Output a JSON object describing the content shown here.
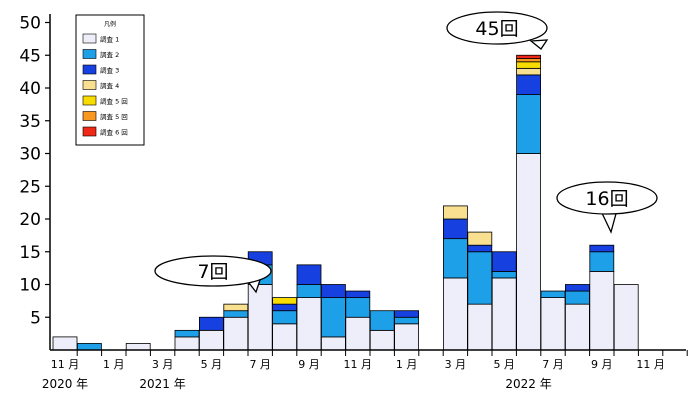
{
  "chart_data": {
    "type": "bar",
    "stacked": true,
    "ylim": [
      0,
      50
    ],
    "yticks": [
      5,
      10,
      15,
      20,
      25,
      30,
      35,
      40,
      45,
      50
    ],
    "month_labels": [
      "11 月",
      "1 月",
      "3 月",
      "5 月",
      "7 月",
      "9 月",
      "11 月",
      "1 月",
      "3 月",
      "5 月",
      "7 月",
      "9 月",
      "11 月"
    ],
    "year_labels": [
      "2020 年",
      "2021 年",
      "2022 年"
    ],
    "categories": [
      "2020-11",
      "2020-12",
      "2021-01",
      "2021-02",
      "2021-03",
      "2021-04",
      "2021-05",
      "2021-06",
      "2021-07",
      "2021-08",
      "2021-09",
      "2021-10",
      "2021-11",
      "2021-12",
      "2022-01",
      "2022-02",
      "2022-03",
      "2022-04",
      "2022-05",
      "2022-06",
      "2022-07",
      "2022-08",
      "2022-09",
      "2022-10",
      "2022-11",
      "2022-12"
    ],
    "legend": {
      "title": "凡例",
      "entries": [
        "調査 1",
        "調査 2",
        "調査 3",
        "調査 4",
        "調査 5 回",
        "調査 5 回",
        "調査 6 回"
      ]
    },
    "colors": [
      "#eeeefa",
      "#1ea0e8",
      "#1640e0",
      "#f8e090",
      "#f8dc00",
      "#f89820",
      "#f02818"
    ],
    "series": [
      {
        "name": "調査 1",
        "values": [
          2,
          0,
          0,
          1,
          0,
          2,
          3,
          5,
          10,
          4,
          8,
          2,
          5,
          3,
          4,
          0,
          11,
          7,
          11,
          30,
          8,
          7,
          12,
          10,
          0,
          0
        ]
      },
      {
        "name": "調査 2",
        "values": [
          0,
          1,
          0,
          0,
          0,
          1,
          0,
          1,
          3,
          2,
          2,
          6,
          3,
          3,
          1,
          0,
          6,
          8,
          1,
          9,
          1,
          2,
          3,
          0,
          0,
          0
        ]
      },
      {
        "name": "調査 3",
        "values": [
          0,
          0,
          0,
          0,
          0,
          0,
          2,
          0,
          2,
          1,
          3,
          2,
          1,
          0,
          1,
          0,
          3,
          1,
          3,
          3,
          0,
          1,
          1,
          0,
          0,
          0
        ]
      },
      {
        "name": "調査 4",
        "values": [
          0,
          0,
          0,
          0,
          0,
          0,
          0,
          1,
          0,
          0,
          0,
          0,
          0,
          0,
          0,
          0,
          2,
          2,
          0,
          1,
          0,
          0,
          0,
          0,
          0,
          0
        ]
      },
      {
        "name": "調査 5 回",
        "values": [
          0,
          0,
          0,
          0,
          0,
          0,
          0,
          0,
          0,
          1,
          0,
          0,
          0,
          0,
          0,
          0,
          0,
          0,
          0,
          1,
          0,
          0,
          0,
          0,
          0,
          0
        ]
      },
      {
        "name": "調査 5 回",
        "values": [
          0,
          0,
          0,
          0,
          0,
          0,
          0,
          0,
          0,
          0,
          0,
          0,
          0,
          0,
          0,
          0,
          0,
          0,
          0,
          0.5,
          0,
          0,
          0,
          0,
          0,
          0
        ]
      },
      {
        "name": "調査 6 回",
        "values": [
          0,
          0,
          0,
          0,
          0,
          0,
          0,
          0,
          0,
          0,
          0,
          0,
          0,
          0,
          0,
          0,
          0,
          0,
          0,
          0.5,
          0,
          0,
          0,
          0,
          0,
          0
        ]
      }
    ],
    "callouts": [
      {
        "text": "7回",
        "category": "2021-06",
        "value": 7
      },
      {
        "text": "45回",
        "category": "2022-06",
        "value": 45
      },
      {
        "text": "16回",
        "category": "2022-09",
        "value": 16
      }
    ]
  }
}
